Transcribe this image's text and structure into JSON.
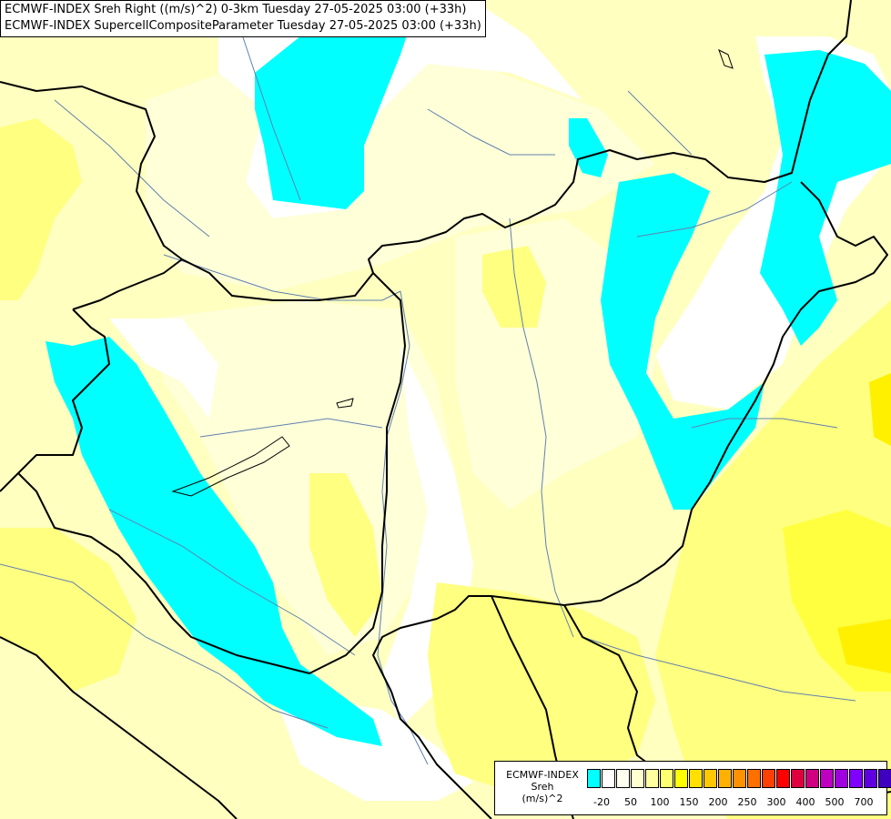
{
  "title_lines": [
    "ECMWF-INDEX Sreh Right ((m/s)^2) 0-3km Tuesday 27-05-2025 03:00 (+33h)",
    "ECMWF-INDEX SupercellCompositeParameter Tuesday 27-05-2025 03:00 (+33h)"
  ],
  "legend": {
    "title": "ECMWF-INDEX",
    "subtitle": "Sreh",
    "unit": "(m/s)^2",
    "colors": [
      "#00ffff",
      "#ffffff",
      "#fffff0",
      "#ffffd0",
      "#ffffa0",
      "#ffff70",
      "#ffff00",
      "#ffe000",
      "#ffc800",
      "#ffb000",
      "#ff9000",
      "#ff7000",
      "#ff4000",
      "#ff0000",
      "#e00040",
      "#d00080",
      "#c000c0",
      "#a000e0",
      "#8000ff",
      "#6000e0",
      "#4000c0",
      "#200080"
    ],
    "tick_labels": [
      "-20",
      "50",
      "100",
      "150",
      "200",
      "250",
      "300",
      "400",
      "500",
      "700"
    ]
  },
  "map": {
    "field_colors": {
      "base": "#ffffc0",
      "pale": "#ffffd8",
      "white": "#ffffff",
      "cyan": "#00ffff",
      "yellow": "#ffff80",
      "strong_yellow": "#ffff40",
      "orange": "#fff000"
    },
    "border_color": "#000000",
    "river_color": "#6080b0"
  }
}
